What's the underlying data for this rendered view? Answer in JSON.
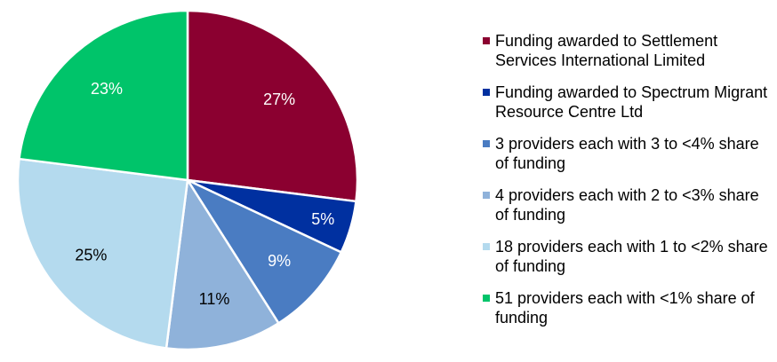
{
  "chart_data": {
    "type": "pie",
    "start": "top",
    "direction": "clockwise",
    "slices": [
      {
        "label": "Funding awarded to Settlement Services International Limited",
        "value": 27,
        "display": "27%",
        "color": "#8B0030",
        "label_color": "#FFFFFF"
      },
      {
        "label": "Funding awarded to Spectrum Migrant Resource Centre Ltd",
        "value": 5,
        "display": "5%",
        "color": "#0030A0",
        "label_color": "#FFFFFF"
      },
      {
        "label": "3 providers each with 3 to <4% share of funding",
        "value": 9,
        "display": "9%",
        "color": "#4A7CC2",
        "label_color": "#FFFFFF"
      },
      {
        "label": "4 providers each with 2 to <3% share of funding",
        "value": 11,
        "display": "11%",
        "color": "#8FB2DA",
        "label_color": "#000000"
      },
      {
        "label": "18 providers each with 1 to <2% share of funding",
        "value": 25,
        "display": "25%",
        "color": "#B4DAEE",
        "label_color": "#000000"
      },
      {
        "label": "51 providers each with <1% share of funding",
        "value": 23,
        "display": "23%",
        "color": "#00C46A",
        "label_color": "#FFFFFF"
      }
    ],
    "legend_position": "right"
  }
}
